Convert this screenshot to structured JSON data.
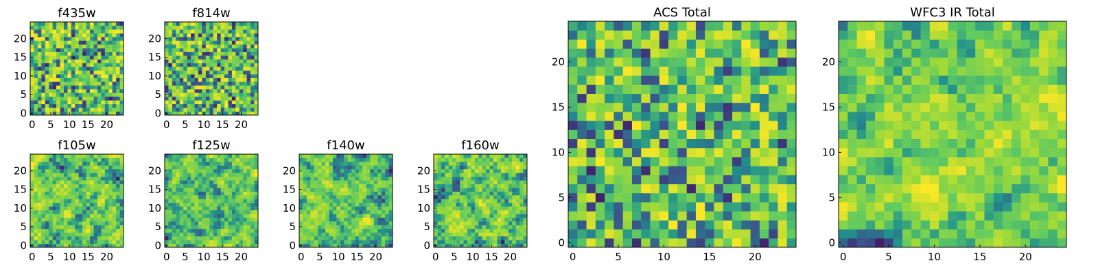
{
  "palette": [
    "#440154",
    "#3b528b",
    "#21918c",
    "#5ec962",
    "#a0da39",
    "#fde725"
  ],
  "chart_data": [
    {
      "type": "heatmap",
      "title": "f435w",
      "grid": false,
      "xlim": [
        0,
        24
      ],
      "ylim": [
        0,
        24
      ],
      "xticks": [
        0,
        5,
        10,
        15,
        20
      ],
      "yticks": [
        0,
        5,
        10,
        15,
        20
      ],
      "xtick_labels": [
        "0",
        "5",
        "10",
        "15",
        "20"
      ],
      "ytick_labels": [
        "0",
        "5",
        "10",
        "15",
        "20"
      ],
      "size": [
        25,
        25
      ],
      "texture": "noise",
      "seed": 11
    },
    {
      "type": "heatmap",
      "title": "f814w",
      "grid": false,
      "xlim": [
        0,
        24
      ],
      "ylim": [
        0,
        24
      ],
      "xticks": [
        0,
        5,
        10,
        15,
        20
      ],
      "yticks": [
        0,
        5,
        10,
        15,
        20
      ],
      "xtick_labels": [
        "0",
        "5",
        "10",
        "15",
        "20"
      ],
      "ytick_labels": [
        "0",
        "5",
        "10",
        "15",
        "20"
      ],
      "size": [
        25,
        25
      ],
      "texture": "noise",
      "seed": 23
    },
    {
      "type": "heatmap",
      "title": "f105w",
      "grid": false,
      "xlim": [
        0,
        24
      ],
      "ylim": [
        0,
        24
      ],
      "xticks": [
        0,
        5,
        10,
        15,
        20
      ],
      "yticks": [
        0,
        5,
        10,
        15,
        20
      ],
      "xtick_labels": [
        "0",
        "5",
        "10",
        "15",
        "20"
      ],
      "ytick_labels": [
        "0",
        "5",
        "10",
        "15",
        "20"
      ],
      "size": [
        25,
        25
      ],
      "texture": "smooth",
      "seed": 37
    },
    {
      "type": "heatmap",
      "title": "f125w",
      "grid": false,
      "xlim": [
        0,
        24
      ],
      "ylim": [
        0,
        24
      ],
      "xticks": [
        0,
        5,
        10,
        15,
        20
      ],
      "yticks": [
        0,
        5,
        10,
        15,
        20
      ],
      "xtick_labels": [
        "0",
        "5",
        "10",
        "15",
        "20"
      ],
      "ytick_labels": [
        "0",
        "5",
        "10",
        "15",
        "20"
      ],
      "size": [
        25,
        25
      ],
      "texture": "smooth",
      "seed": 41
    },
    {
      "type": "heatmap",
      "title": "f140w",
      "grid": false,
      "xlim": [
        0,
        24
      ],
      "ylim": [
        0,
        24
      ],
      "xticks": [
        0,
        5,
        10,
        15,
        20
      ],
      "yticks": [
        0,
        5,
        10,
        15,
        20
      ],
      "xtick_labels": [
        "0",
        "5",
        "10",
        "15",
        "20"
      ],
      "ytick_labels": [
        "0",
        "5",
        "10",
        "15",
        "20"
      ],
      "size": [
        25,
        25
      ],
      "texture": "smooth",
      "seed": 53
    },
    {
      "type": "heatmap",
      "title": "f160w",
      "grid": false,
      "xlim": [
        0,
        24
      ],
      "ylim": [
        0,
        24
      ],
      "xticks": [
        0,
        5,
        10,
        15,
        20
      ],
      "yticks": [
        0,
        5,
        10,
        15,
        20
      ],
      "xtick_labels": [
        "0",
        "5",
        "10",
        "15",
        "20"
      ],
      "ytick_labels": [
        "0",
        "5",
        "10",
        "15",
        "20"
      ],
      "size": [
        25,
        25
      ],
      "texture": "smooth",
      "seed": 67
    },
    {
      "type": "heatmap",
      "title": "ACS Total",
      "grid": false,
      "xlim": [
        0,
        24
      ],
      "ylim": [
        0,
        24
      ],
      "xticks": [
        0,
        5,
        10,
        15,
        20
      ],
      "yticks": [
        0,
        5,
        10,
        15,
        20
      ],
      "xtick_labels": [
        "0",
        "5",
        "10",
        "15",
        "20"
      ],
      "ytick_labels": [
        "0",
        "5",
        "10",
        "15",
        "20"
      ],
      "size": [
        25,
        25
      ],
      "texture": "noise",
      "seed": 79
    },
    {
      "type": "heatmap",
      "title": "WFC3 IR Total",
      "grid": false,
      "xlim": [
        0,
        24
      ],
      "ylim": [
        0,
        24
      ],
      "xticks": [
        0,
        5,
        10,
        15,
        20
      ],
      "yticks": [
        0,
        5,
        10,
        15,
        20
      ],
      "xtick_labels": [
        "0",
        "5",
        "10",
        "15",
        "20"
      ],
      "ytick_labels": [
        "0",
        "5",
        "10",
        "15",
        "20"
      ],
      "size": [
        25,
        25
      ],
      "texture": "smooth",
      "seed": 97
    }
  ]
}
